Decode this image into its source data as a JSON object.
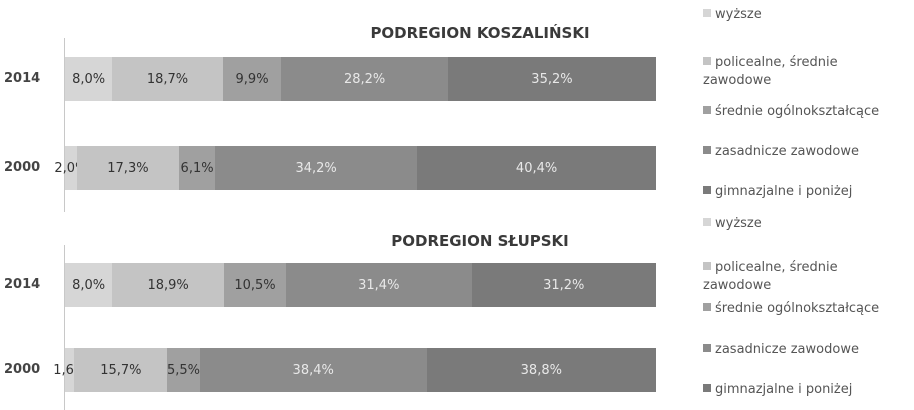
{
  "chart_data": [
    {
      "type": "stacked-bar-horizontal",
      "title": "PODREGION KOSZALIŃSKI",
      "categories": [
        "2014",
        "2000"
      ],
      "series": [
        {
          "name": "wyższe",
          "color": "#d6d6d6",
          "values": [
            8.0,
            2.0
          ],
          "value_labels": [
            "8,0%",
            "2,0%"
          ]
        },
        {
          "name": "policealne, średnie zawodowe",
          "color": "#c4c4c4",
          "values": [
            18.7,
            17.3
          ],
          "value_labels": [
            "18,7%",
            "17,3%"
          ]
        },
        {
          "name": "średnie ogólnokształcące",
          "color": "#a0a0a0",
          "values": [
            9.9,
            6.1
          ],
          "value_labels": [
            "9,9%",
            "6,1%"
          ]
        },
        {
          "name": "zasadnicze zawodowe",
          "color": "#8b8b8b",
          "values": [
            28.2,
            34.2
          ],
          "value_labels": [
            "28,2%",
            "34,2%"
          ]
        },
        {
          "name": "gimnazjalne i poniżej",
          "color": "#7a7a7a",
          "values": [
            35.2,
            40.4
          ],
          "value_labels": [
            "35,2%",
            "40,4%"
          ]
        }
      ]
    },
    {
      "type": "stacked-bar-horizontal",
      "title": "PODREGION SŁUPSKI",
      "categories": [
        "2014",
        "2000"
      ],
      "series": [
        {
          "name": "wyższe",
          "color": "#d6d6d6",
          "values": [
            8.0,
            1.6
          ],
          "value_labels": [
            "8,0%",
            "1,6%"
          ]
        },
        {
          "name": "policealne, średnie zawodowe",
          "color": "#c4c4c4",
          "values": [
            18.9,
            15.7
          ],
          "value_labels": [
            "18,9%",
            "15,7%"
          ]
        },
        {
          "name": "średnie ogólnokształcące",
          "color": "#a0a0a0",
          "values": [
            10.5,
            5.5
          ],
          "value_labels": [
            "10,5%",
            "5,5%"
          ]
        },
        {
          "name": "zasadnicze zawodowe",
          "color": "#8b8b8b",
          "values": [
            31.4,
            38.4
          ],
          "value_labels": [
            "31,4%",
            "38,4%"
          ]
        },
        {
          "name": "gimnazjalne i poniżej",
          "color": "#7a7a7a",
          "values": [
            31.2,
            38.8
          ],
          "value_labels": [
            "31,2%",
            "38,8%"
          ]
        }
      ]
    }
  ]
}
